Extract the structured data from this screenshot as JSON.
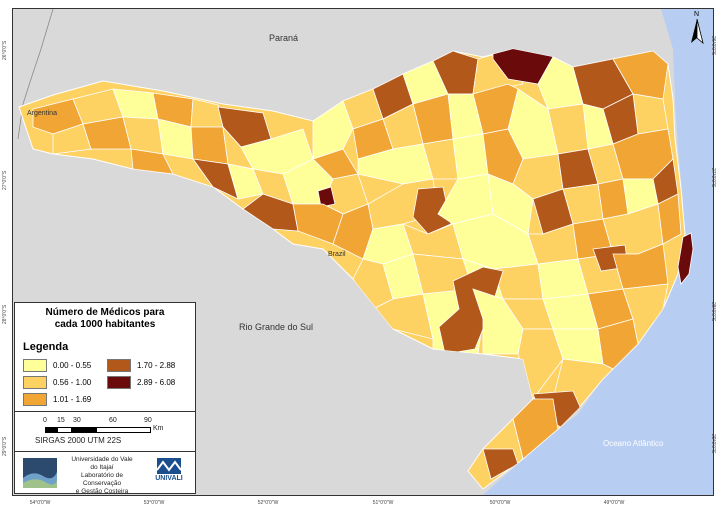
{
  "map": {
    "title": "Número de Médicos para cada 1000 habitantes",
    "title_line1": "Número de Médicos para",
    "title_line2": "cada 1000 habitantes",
    "legend_heading": "Legenda",
    "classes": [
      {
        "label": "0.00 - 0.55",
        "color": "#ffff99"
      },
      {
        "label": "0.56 - 1.00",
        "color": "#fdd162"
      },
      {
        "label": "1.01 - 1.69",
        "color": "#f0a535"
      },
      {
        "label": "1.70 - 2.88",
        "color": "#b3581b"
      },
      {
        "label": "2.89 - 6.08",
        "color": "#6b0a0a"
      }
    ],
    "places": {
      "parana": "Paraná",
      "argentina": "Argentina",
      "rio_grande_do_sul": "Rio Grande do Sul",
      "brazil": "Brazil",
      "ocean": "Oceano Atlântico"
    },
    "north": "N",
    "scale_ticks": [
      "0",
      "15",
      "30",
      "60",
      "90"
    ],
    "scale_unit": "Km",
    "projection": "SIRGAS 2000 UTM 22S",
    "institution": [
      "Universidade do Vale",
      "do Itajaí",
      "Laboratório de Conservação",
      "e Gestão Costeira"
    ],
    "logo_text": "UNIVALI",
    "lon_ticks": [
      "54°0'0\"W",
      "53°0'0\"W",
      "52°0'0\"W",
      "51°0'0\"W",
      "50°0'0\"W",
      "49°0'0\"W"
    ],
    "lat_ticks": [
      "26°0'0\"S",
      "27°0'0\"S",
      "28°0'0\"S",
      "29°0'0\"S"
    ],
    "colors": {
      "land": "#d9d9d9",
      "ocean": "#b7cdf2",
      "border": "#ffffff"
    }
  }
}
